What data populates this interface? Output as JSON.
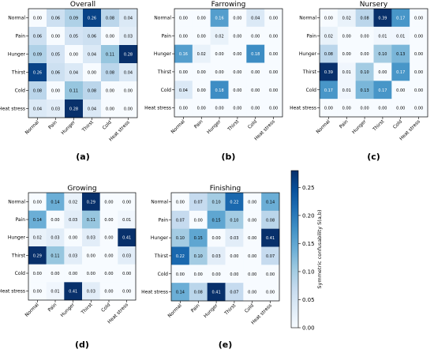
{
  "figure": {
    "colorbar": {
      "label": "Symmetric confusability S(a,b)",
      "ticks": [
        "0.00",
        "0.05",
        "0.10",
        "0.15",
        "0.20",
        "0.25"
      ],
      "vmin": 0,
      "vmax": 0.28,
      "color_low": "#f7fbff",
      "color_high": "#08306b"
    }
  },
  "chart_data": [
    {
      "type": "heatmap",
      "title": "Overall",
      "caption": "(a)",
      "categories": [
        "Normal",
        "Pain",
        "Hunger",
        "Thirst",
        "Cold",
        "Heat stress"
      ],
      "labels": [
        [
          "0.00",
          "0.06",
          "0.09",
          "0.26",
          "0.08",
          "0.04"
        ],
        [
          "0.06",
          "0.00",
          "0.05",
          "0.06",
          "0.00",
          "0.03"
        ],
        [
          "0.09",
          "0.05",
          "0.00",
          "0.04",
          "0.11",
          "0.28"
        ],
        [
          "0.26",
          "0.06",
          "0.04",
          "0.00",
          "0.08",
          "0.04"
        ],
        [
          "0.08",
          "0.00",
          "0.11",
          "0.08",
          "0.00",
          "0.00"
        ],
        [
          "0.04",
          "0.03",
          "0.28",
          "0.04",
          "0.00",
          "0.00"
        ]
      ]
    },
    {
      "type": "heatmap",
      "title": "Farrowing",
      "caption": "(b)",
      "categories": [
        "Normal",
        "Pain",
        "Hunger",
        "Thirst",
        "Cold",
        "Heat stress"
      ],
      "labels": [
        [
          "0.00",
          "0.00",
          "0.16",
          "0.00",
          "0.04",
          "0.00"
        ],
        [
          "0.00",
          "0.00",
          "0.02",
          "0.00",
          "0.00",
          "0.00"
        ],
        [
          "0.16",
          "0.02",
          "0.00",
          "0.00",
          "0.18",
          "0.00"
        ],
        [
          "0.00",
          "0.00",
          "0.00",
          "0.00",
          "0.00",
          "0.00"
        ],
        [
          "0.04",
          "0.00",
          "0.18",
          "0.00",
          "0.00",
          "0.00"
        ],
        [
          "0.00",
          "0.00",
          "0.00",
          "0.00",
          "0.00",
          "0.00"
        ]
      ]
    },
    {
      "type": "heatmap",
      "title": "Nursery",
      "caption": "(c)",
      "categories": [
        "Normal",
        "Pain",
        "Hunger",
        "Thirst",
        "Cold",
        "Heat stress"
      ],
      "labels": [
        [
          "0.00",
          "0.02",
          "0.08",
          "0.39",
          "0.17",
          "0.00"
        ],
        [
          "0.02",
          "0.00",
          "0.00",
          "0.01",
          "0.01",
          "0.00"
        ],
        [
          "0.08",
          "0.00",
          "0.00",
          "0.10",
          "0.13",
          "0.00"
        ],
        [
          "0.39",
          "0.01",
          "0.10",
          "0.00",
          "0.17",
          "0.00"
        ],
        [
          "0.17",
          "0.01",
          "0.13",
          "0.17",
          "0.00",
          "0.00"
        ],
        [
          "0.00",
          "0.00",
          "0.00",
          "0.00",
          "0.00",
          "0.00"
        ]
      ]
    },
    {
      "type": "heatmap",
      "title": "Growing",
      "caption": "(d)",
      "categories": [
        "Normal",
        "Pain",
        "Hunger",
        "Thirst",
        "Cold",
        "Heat stress"
      ],
      "labels": [
        [
          "0.00",
          "0.14",
          "0.02",
          "0.29",
          "0.00",
          "0.00"
        ],
        [
          "0.14",
          "0.00",
          "0.03",
          "0.11",
          "0.00",
          "0.01"
        ],
        [
          "0.02",
          "0.03",
          "0.00",
          "0.03",
          "0.00",
          "0.41"
        ],
        [
          "0.29",
          "0.11",
          "0.03",
          "0.00",
          "0.00",
          "0.03"
        ],
        [
          "0.00",
          "0.00",
          "0.00",
          "0.00",
          "0.00",
          "0.00"
        ],
        [
          "0.00",
          "0.01",
          "0.41",
          "0.03",
          "0.00",
          "0.00"
        ]
      ]
    },
    {
      "type": "heatmap",
      "title": "Finishing",
      "caption": "(e)",
      "categories": [
        "Normal",
        "Pain",
        "Hunger",
        "Thirst",
        "Cold",
        "Heat stress"
      ],
      "labels": [
        [
          "0.00",
          "0.07",
          "0.10",
          "0.22",
          "0.00",
          "0.14"
        ],
        [
          "0.07",
          "0.00",
          "0.15",
          "0.10",
          "0.00",
          "0.08"
        ],
        [
          "0.10",
          "0.15",
          "0.00",
          "0.03",
          "0.00",
          "0.41"
        ],
        [
          "0.22",
          "0.10",
          "0.03",
          "0.00",
          "0.00",
          "0.07"
        ],
        [
          "0.00",
          "0.00",
          "0.00",
          "0.00",
          "0.00",
          "0.00"
        ],
        [
          "0.14",
          "0.08",
          "0.41",
          "0.07",
          "0.00",
          "0.00"
        ]
      ]
    }
  ]
}
